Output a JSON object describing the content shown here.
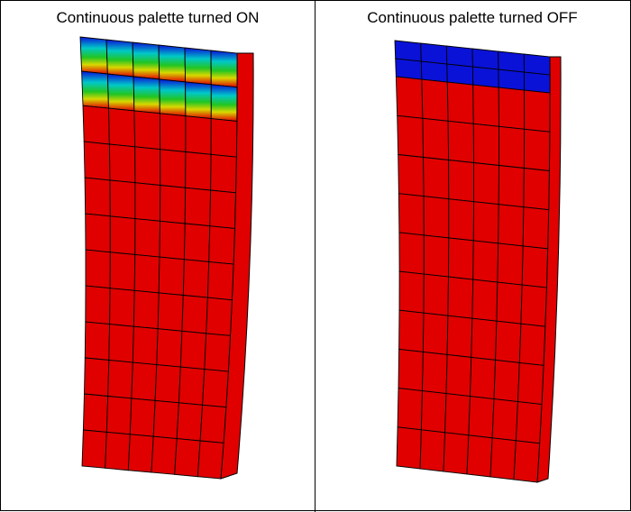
{
  "panels": [
    {
      "title": "Continuous palette turned ON",
      "palette": "continuous",
      "mesh": {
        "columns": 6,
        "rows": 12
      },
      "colors": {
        "top": "#0a12d8",
        "mid_high": "#00c8c8",
        "mid": "#22c522",
        "mid_low": "#d8d800",
        "bottom": "#e00000"
      }
    },
    {
      "title": "Continuous palette turned OFF",
      "palette": "discrete",
      "mesh": {
        "columns": 6,
        "rows": 12
      },
      "colors": {
        "top": "#0a12d8",
        "bottom": "#e00000"
      }
    }
  ],
  "style": {
    "edge_color": "#000000",
    "background": "#ffffff"
  }
}
